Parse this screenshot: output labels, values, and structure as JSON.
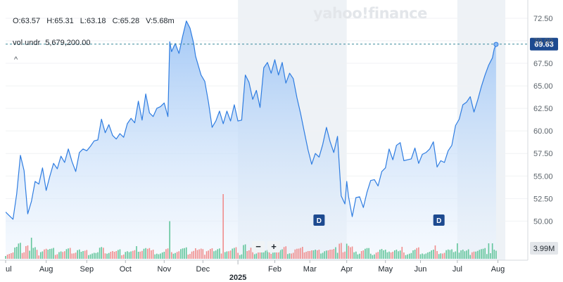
{
  "header": {
    "open": "O:63.57",
    "high": "H:65.31",
    "low": "L:63.18",
    "close": "C:65.28",
    "volume": "V:5.68m",
    "vol_underlay_label": "vol undr",
    "vol_underlay_value": "5,679,200.00",
    "collapse_glyph": "^"
  },
  "watermark": "yahoo!finance",
  "zoom": {
    "minus": "−",
    "plus": "+"
  },
  "colors": {
    "line": "#2f7de1",
    "area_top": "#9ec5f5",
    "area_bottom": "#eef5fd",
    "badge_bg": "#1d4a90",
    "volume_up": "#62c59b",
    "volume_down": "#f08d8d",
    "last_price_bg": "#1d4a90",
    "shade": "#eef2f6"
  },
  "chart_data": {
    "type": "area",
    "title": "",
    "xlabel": "",
    "ylabel": "",
    "ylim": [
      48.0,
      73.9
    ],
    "y_ticks": [
      "72.50",
      "70.00",
      "67.50",
      "65.00",
      "62.50",
      "60.00",
      "57.50",
      "55.00",
      "52.50",
      "50.00"
    ],
    "y_tick_values": [
      72.5,
      70.0,
      67.5,
      65.0,
      62.5,
      60.0,
      57.5,
      55.0,
      52.5,
      50.0
    ],
    "x_ticks": [
      {
        "label": "ul",
        "t": 0
      },
      {
        "label": "Aug",
        "t": 22
      },
      {
        "label": "Sep",
        "t": 44
      },
      {
        "label": "Oct",
        "t": 65
      },
      {
        "label": "Nov",
        "t": 86
      },
      {
        "label": "Dec",
        "t": 107
      },
      {
        "label": "Feb",
        "t": 146
      },
      {
        "label": "Mar",
        "t": 165
      },
      {
        "label": "Apr",
        "t": 185
      },
      {
        "label": "May",
        "t": 206
      },
      {
        "label": "Jun",
        "t": 225
      },
      {
        "label": "Jul",
        "t": 245
      },
      {
        "label": "Aug",
        "t": 267
      }
    ],
    "year_label": {
      "label": "2025",
      "t": 126
    },
    "t_range": [
      0,
      271
    ],
    "shaded_ranges": [
      [
        126,
        185
      ],
      [
        245,
        271
      ]
    ],
    "last_price": {
      "label": "69.63",
      "value": 69.63
    },
    "volume_label": "3.99M",
    "volume_max": 8.0,
    "dividend_markers": [
      {
        "label": "D",
        "t": 170
      },
      {
        "label": "D",
        "t": 235
      }
    ],
    "series": [
      {
        "t": [
          0,
          2,
          4,
          6,
          8,
          10,
          12,
          14,
          16,
          18,
          20,
          22,
          24,
          26,
          28,
          30,
          32,
          34,
          36,
          38,
          40,
          42,
          44,
          46,
          48,
          50,
          52,
          54,
          56,
          58,
          60,
          62,
          64,
          66,
          68,
          70,
          72,
          74,
          76,
          78,
          80,
          82,
          84,
          86,
          88,
          89,
          90,
          92,
          94,
          96,
          98,
          100,
          102,
          103,
          104,
          106,
          108,
          110,
          112,
          114,
          116,
          118,
          120,
          122,
          124,
          126,
          128,
          130,
          132,
          134,
          136,
          138,
          140,
          142,
          144,
          146,
          148,
          150,
          152,
          154,
          156,
          158,
          160,
          162,
          164,
          166,
          168,
          170,
          172,
          174,
          176,
          178,
          180,
          182,
          184,
          185,
          186,
          188,
          190,
          192,
          194,
          196,
          198,
          200,
          202,
          204,
          206,
          208,
          210,
          212,
          214,
          216,
          218,
          220,
          222,
          224,
          226,
          228,
          230,
          232,
          234,
          236,
          238,
          240,
          242,
          244,
          246,
          248,
          250,
          252,
          254,
          256,
          258,
          260,
          262,
          264,
          265,
          266
        ],
        "values": [
          51.0,
          50.6,
          50.2,
          53.0,
          57.3,
          55.6,
          50.8,
          52.2,
          54.4,
          54.1,
          55.9,
          53.4,
          55.0,
          56.4,
          55.8,
          57.2,
          56.5,
          58.0,
          56.6,
          55.5,
          57.6,
          58.0,
          57.8,
          58.3,
          58.9,
          59.0,
          61.3,
          59.8,
          60.7,
          59.5,
          59.1,
          59.7,
          59.3,
          60.8,
          61.4,
          60.9,
          63.3,
          61.2,
          64.1,
          62.0,
          61.6,
          62.5,
          62.7,
          63.1,
          61.6,
          69.9,
          68.8,
          69.7,
          68.6,
          70.5,
          72.2,
          71.4,
          69.7,
          68.3,
          67.6,
          66.2,
          65.5,
          63.2,
          60.4,
          61.1,
          62.2,
          60.8,
          62.2,
          61.1,
          62.9,
          61.1,
          61.2,
          66.2,
          65.4,
          63.5,
          64.5,
          62.6,
          67.0,
          67.6,
          66.4,
          67.9,
          66.2,
          67.6,
          65.3,
          66.4,
          65.8,
          63.7,
          61.9,
          59.9,
          57.9,
          56.3,
          57.5,
          57.1,
          58.5,
          60.4,
          58.8,
          57.6,
          59.4,
          52.8,
          51.9,
          54.4,
          52.7,
          50.5,
          52.6,
          52.7,
          51.5,
          53.2,
          54.5,
          54.6,
          53.9,
          55.5,
          55.9,
          58.0,
          56.8,
          58.4,
          58.7,
          56.7,
          56.8,
          56.9,
          58.1,
          56.4,
          57.4,
          57.6,
          58.0,
          58.8,
          56.0,
          56.7,
          56.5,
          57.8,
          58.4,
          60.6,
          61.3,
          62.9,
          63.2,
          63.8,
          62.1,
          63.4,
          64.9,
          66.2,
          67.3,
          68.1,
          69.1,
          69.6
        ]
      }
    ]
  }
}
